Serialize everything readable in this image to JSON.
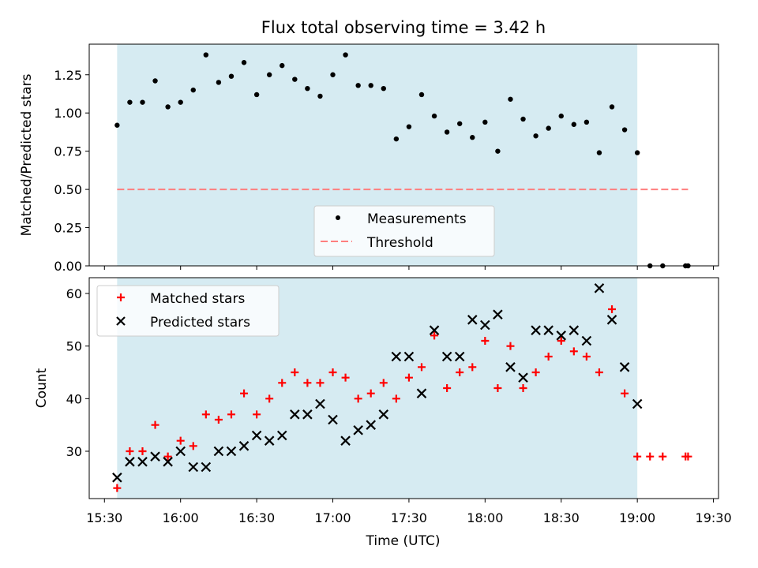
{
  "title": "Flux total observing time = 3.42 h",
  "colors": {
    "shade": "#add8e6",
    "threshold": "#ff7f7f",
    "matched": "#ff0000",
    "predicted": "#000000",
    "measurement": "#000000"
  },
  "chart_data": [
    {
      "type": "scatter",
      "ylabel": "Matched/Predicted stars",
      "xlabel": "",
      "xlim": [
        "15:24",
        "19:32"
      ],
      "ylim": [
        0,
        1.45
      ],
      "yticks": [
        0.0,
        0.25,
        0.5,
        0.75,
        1.0,
        1.25
      ],
      "ytick_labels": [
        "0.00",
        "0.25",
        "0.50",
        "0.75",
        "1.00",
        "1.25"
      ],
      "shaded_span": [
        "15:35",
        "19:00"
      ],
      "legend": {
        "position": "bottom-center",
        "entries": [
          "Measurements",
          "Threshold"
        ]
      },
      "threshold": {
        "name": "Threshold",
        "value": 0.5,
        "x_range": [
          "15:35",
          "19:20"
        ],
        "style": "dashed"
      },
      "series": [
        {
          "name": "Measurements",
          "x": [
            "15:35",
            "15:40",
            "15:45",
            "15:50",
            "15:55",
            "16:00",
            "16:05",
            "16:10",
            "16:15",
            "16:20",
            "16:25",
            "16:30",
            "16:35",
            "16:40",
            "16:45",
            "16:50",
            "16:55",
            "17:00",
            "17:05",
            "17:10",
            "17:15",
            "17:20",
            "17:25",
            "17:30",
            "17:35",
            "17:40",
            "17:45",
            "17:50",
            "17:55",
            "18:00",
            "18:05",
            "18:10",
            "18:15",
            "18:20",
            "18:25",
            "18:30",
            "18:35",
            "18:40",
            "18:45",
            "18:50",
            "18:55",
            "19:00",
            "19:05",
            "19:10",
            "19:19",
            "19:20"
          ],
          "y": [
            0.92,
            1.07,
            1.07,
            1.21,
            1.04,
            1.07,
            1.15,
            1.38,
            1.2,
            1.24,
            1.33,
            1.12,
            1.25,
            1.31,
            1.22,
            1.16,
            1.11,
            1.25,
            1.38,
            1.18,
            1.18,
            1.16,
            0.83,
            0.91,
            1.12,
            0.98,
            0.875,
            0.93,
            0.84,
            0.94,
            0.75,
            1.09,
            0.96,
            0.85,
            0.9,
            0.98,
            0.925,
            0.94,
            0.74,
            1.04,
            0.89,
            0.74,
            0.0,
            0.0,
            0.0,
            0.0
          ]
        }
      ]
    },
    {
      "type": "scatter",
      "ylabel": "Count",
      "xlabel": "Time (UTC)",
      "xlim": [
        "15:24",
        "19:32"
      ],
      "ylim": [
        21,
        63
      ],
      "yticks": [
        30,
        40,
        50,
        60
      ],
      "ytick_labels": [
        "30",
        "40",
        "50",
        "60"
      ],
      "xticks": [
        "15:30",
        "16:00",
        "16:30",
        "17:00",
        "17:30",
        "18:00",
        "18:30",
        "19:00",
        "19:30"
      ],
      "shaded_span": [
        "15:35",
        "19:00"
      ],
      "legend": {
        "position": "top-left",
        "entries": [
          "Matched stars",
          "Predicted stars"
        ]
      },
      "series": [
        {
          "name": "Matched stars",
          "marker": "plus",
          "x": [
            "15:35",
            "15:40",
            "15:45",
            "15:50",
            "15:55",
            "16:00",
            "16:05",
            "16:10",
            "16:15",
            "16:20",
            "16:25",
            "16:30",
            "16:35",
            "16:40",
            "16:45",
            "16:50",
            "16:55",
            "17:00",
            "17:05",
            "17:10",
            "17:15",
            "17:20",
            "17:25",
            "17:30",
            "17:35",
            "17:40",
            "17:45",
            "17:50",
            "17:55",
            "18:00",
            "18:05",
            "18:10",
            "18:15",
            "18:20",
            "18:25",
            "18:30",
            "18:35",
            "18:40",
            "18:45",
            "18:50",
            "18:55",
            "19:00",
            "19:05",
            "19:10",
            "19:19",
            "19:20"
          ],
          "y": [
            23,
            30,
            30,
            35,
            29,
            32,
            31,
            37,
            36,
            37,
            41,
            37,
            40,
            43,
            45,
            43,
            43,
            45,
            44,
            40,
            41,
            43,
            40,
            44,
            46,
            52,
            42,
            45,
            46,
            51,
            42,
            50,
            42,
            45,
            48,
            51,
            49,
            48,
            45,
            57,
            41,
            29,
            29,
            29,
            29,
            29
          ]
        },
        {
          "name": "Predicted stars",
          "marker": "x",
          "x": [
            "15:35",
            "15:40",
            "15:45",
            "15:50",
            "15:55",
            "16:00",
            "16:05",
            "16:10",
            "16:15",
            "16:20",
            "16:25",
            "16:30",
            "16:35",
            "16:40",
            "16:45",
            "16:50",
            "16:55",
            "17:00",
            "17:05",
            "17:10",
            "17:15",
            "17:20",
            "17:25",
            "17:30",
            "17:35",
            "17:40",
            "17:45",
            "17:50",
            "17:55",
            "18:00",
            "18:05",
            "18:10",
            "18:15",
            "18:20",
            "18:25",
            "18:30",
            "18:35",
            "18:40",
            "18:45",
            "18:50",
            "18:55",
            "19:00"
          ],
          "y": [
            25,
            28,
            28,
            29,
            28,
            30,
            27,
            27,
            30,
            30,
            31,
            33,
            32,
            33,
            37,
            37,
            39,
            36,
            32,
            34,
            35,
            37,
            48,
            48,
            41,
            53,
            48,
            48,
            55,
            54,
            56,
            46,
            44,
            53,
            53,
            52,
            53,
            51,
            61,
            55,
            46,
            39
          ]
        }
      ]
    }
  ]
}
